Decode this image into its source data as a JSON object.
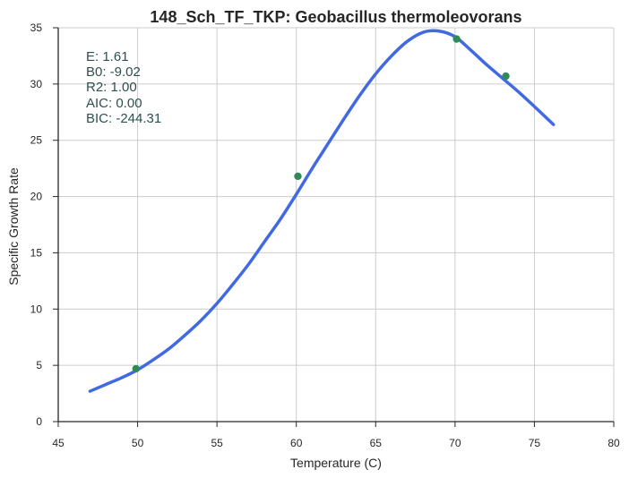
{
  "chart_data": {
    "type": "line",
    "title": "148_Sch_TF_TKP: Geobacillus thermoleovorans",
    "xlabel": "Temperature (C)",
    "ylabel": "Specific Growth Rate",
    "xlim": [
      45,
      80
    ],
    "ylim": [
      0,
      35
    ],
    "xticks": [
      45,
      50,
      55,
      60,
      65,
      70,
      75,
      80
    ],
    "yticks": [
      0,
      5,
      10,
      15,
      20,
      25,
      30,
      35
    ],
    "grid": true,
    "series": [
      {
        "kind": "line",
        "color": "#4169e1",
        "x": [
          47.0,
          48.0,
          49.0,
          50.0,
          51.0,
          52.0,
          53.0,
          54.0,
          55.0,
          56.0,
          57.0,
          58.0,
          59.0,
          60.0,
          61.0,
          62.0,
          63.0,
          64.0,
          65.0,
          66.0,
          67.0,
          68.0,
          69.0,
          70.0,
          71.0,
          72.0,
          73.0,
          74.0,
          75.0,
          76.2
        ],
        "y": [
          2.7,
          3.3,
          3.9,
          4.6,
          5.5,
          6.5,
          7.7,
          9.0,
          10.5,
          12.2,
          14.0,
          16.0,
          18.0,
          20.2,
          22.5,
          24.7,
          26.9,
          29.0,
          30.9,
          32.5,
          33.8,
          34.6,
          34.7,
          34.2,
          33.0,
          31.7,
          30.5,
          29.3,
          28.0,
          26.4
        ]
      },
      {
        "kind": "points",
        "color": "#2e8b57",
        "x": [
          49.9,
          60.1,
          70.1,
          73.2
        ],
        "y": [
          4.7,
          21.8,
          34.0,
          30.7
        ]
      }
    ],
    "annotation": {
      "color": "#2f4f4f",
      "lines": [
        "E:  1.61",
        "B0:  -9.02",
        "R2:  1.00",
        "AIC: 0.00",
        "BIC: -244.31"
      ]
    }
  }
}
